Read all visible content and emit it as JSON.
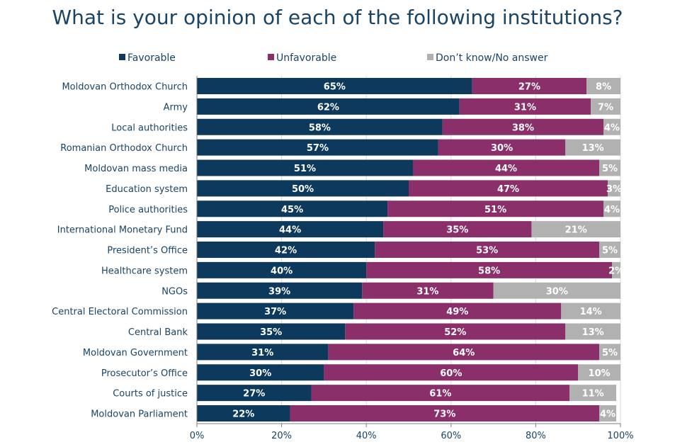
{
  "chart_data": {
    "type": "bar",
    "orientation": "horizontal",
    "stacked": true,
    "title": "What is your opinion of each of the following institutions?",
    "categories": [
      "Moldovan Orthodox Church",
      "Army",
      "Local authorities",
      "Romanian Orthodox Church",
      "Moldovan mass media",
      "Education system",
      "Police authorities",
      "International Monetary Fund",
      "President’s Office",
      "Healthcare system",
      "NGOs",
      "Central Electoral Commission",
      "Central Bank",
      "Moldovan Government",
      "Prosecutor’s Office",
      "Courts of justice",
      "Moldovan Parliament"
    ],
    "series": [
      {
        "name": "Favorable",
        "color": "#0d3a5c",
        "values": [
          65,
          62,
          58,
          57,
          51,
          50,
          45,
          44,
          42,
          40,
          39,
          37,
          35,
          31,
          30,
          27,
          22
        ]
      },
      {
        "name": "Unfavorable",
        "color": "#8b2f6b",
        "values": [
          27,
          31,
          38,
          30,
          44,
          47,
          51,
          35,
          53,
          58,
          31,
          49,
          52,
          64,
          60,
          61,
          73
        ]
      },
      {
        "name": "Don’t know/No answer",
        "color": "#b1b1b1",
        "values": [
          8,
          7,
          4,
          13,
          5,
          3,
          4,
          21,
          5,
          2,
          30,
          14,
          13,
          5,
          10,
          11,
          4
        ]
      }
    ],
    "xlim": [
      0,
      100
    ],
    "xticks": [
      0,
      20,
      40,
      60,
      80,
      100
    ],
    "xtick_labels": [
      "0%",
      "20%",
      "40%",
      "60%",
      "80%",
      "100%"
    ],
    "value_suffix": "%",
    "legend_position": "top"
  }
}
